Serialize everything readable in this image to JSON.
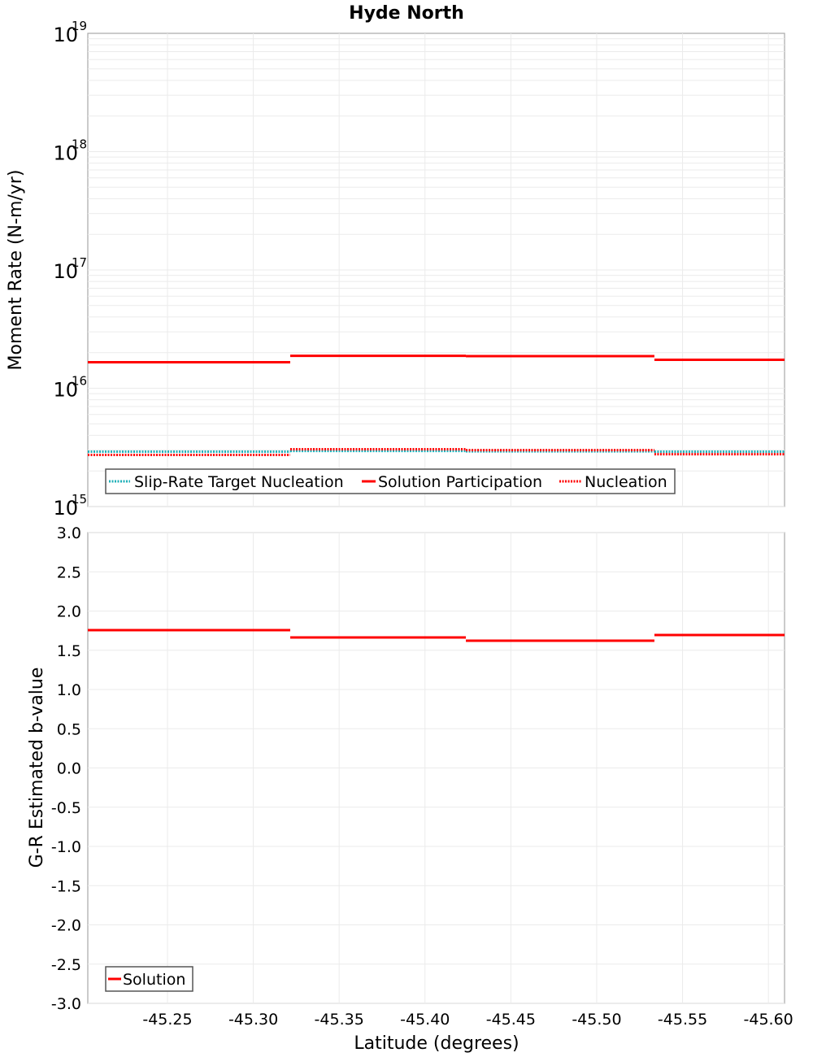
{
  "title": "Hyde North",
  "chart_data": [
    {
      "type": "line",
      "subtype": "step",
      "title": "Hyde North",
      "xlabel": "",
      "ylabel": "Moment Rate (N-m/yr)",
      "yscale": "log",
      "ylim": [
        1000000000000000.0,
        1e+19
      ],
      "xlim": [
        -45.2036,
        -45.6094
      ],
      "x_reversed": true,
      "y_ticks": [
        "10^19",
        "10^18",
        "10^17",
        "10^16",
        "10^15"
      ],
      "grid": true,
      "legend_position": "lower-left",
      "segment_bounds": [
        -45.2036,
        -45.3215,
        -45.4238,
        -45.5336,
        -45.6094
      ],
      "series": [
        {
          "name": "Slip-Rate Target Nucleation",
          "style": "dotted",
          "color": "#1fb0b8",
          "values": [
            2910000000000000.0,
            2950000000000000.0,
            2930000000000000.0,
            2910000000000000.0
          ]
        },
        {
          "name": "Solution Participation",
          "style": "solid",
          "color": "#ff0000",
          "values": [
            1.66e+16,
            1.88e+16,
            1.87e+16,
            1.74e+16
          ]
        },
        {
          "name": "Nucleation",
          "style": "dotted",
          "color": "#ff0000",
          "values": [
            2730000000000000.0,
            3050000000000000.0,
            3000000000000000.0,
            2770000000000000.0
          ]
        }
      ]
    },
    {
      "type": "line",
      "subtype": "step",
      "title": "",
      "xlabel": "Latitude (degrees)",
      "ylabel": "G-R Estimated b-value",
      "ylim": [
        -3.0,
        3.0
      ],
      "xlim": [
        -45.2036,
        -45.6094
      ],
      "x_reversed": true,
      "x_ticks": [
        "-45.25",
        "-45.30",
        "-45.35",
        "-45.40",
        "-45.45",
        "-45.50",
        "-45.55",
        "-45.60"
      ],
      "y_ticks": [
        "3.0",
        "2.5",
        "2.0",
        "1.5",
        "1.0",
        "0.5",
        "0.0",
        "-0.5",
        "-1.0",
        "-1.5",
        "-2.0",
        "-2.5",
        "-3.0"
      ],
      "grid": true,
      "legend_position": "lower-left",
      "segment_bounds": [
        -45.2036,
        -45.3215,
        -45.4238,
        -45.5336,
        -45.6094
      ],
      "series": [
        {
          "name": "Solution",
          "style": "solid",
          "color": "#ff0000",
          "values": [
            1.756,
            1.663,
            1.622,
            1.694
          ]
        }
      ]
    }
  ],
  "legend_top": {
    "items": [
      "Slip-Rate Target Nucleation",
      "Solution Participation",
      "Nucleation"
    ]
  },
  "legend_bottom": {
    "items": [
      "Solution"
    ]
  }
}
